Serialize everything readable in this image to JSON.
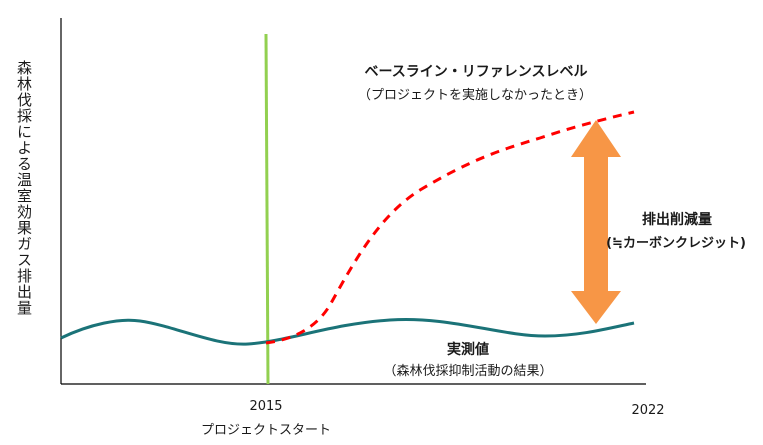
{
  "y_axis_label": "森林伐採による温室効果ガス排出量",
  "x_axis": {
    "start_year": "2015",
    "start_label": "プロジェクトスタート",
    "end_year": "2022"
  },
  "baseline": {
    "title": "ベースライン・リファレンスレベル",
    "subtitle": "（プロジェクトを実施しなかったとき）"
  },
  "reduction": {
    "title": "排出削減量",
    "subtitle": "(≒カーボンクレジット)"
  },
  "actual": {
    "title": "実測値",
    "subtitle": "（森林伐採抑制活動の結果）"
  },
  "colors": {
    "axis": "#000000",
    "project_start_line": "#92d050",
    "baseline_line": "#ff0000",
    "actual_line": "#1b7378",
    "arrow": "#f79646"
  }
}
